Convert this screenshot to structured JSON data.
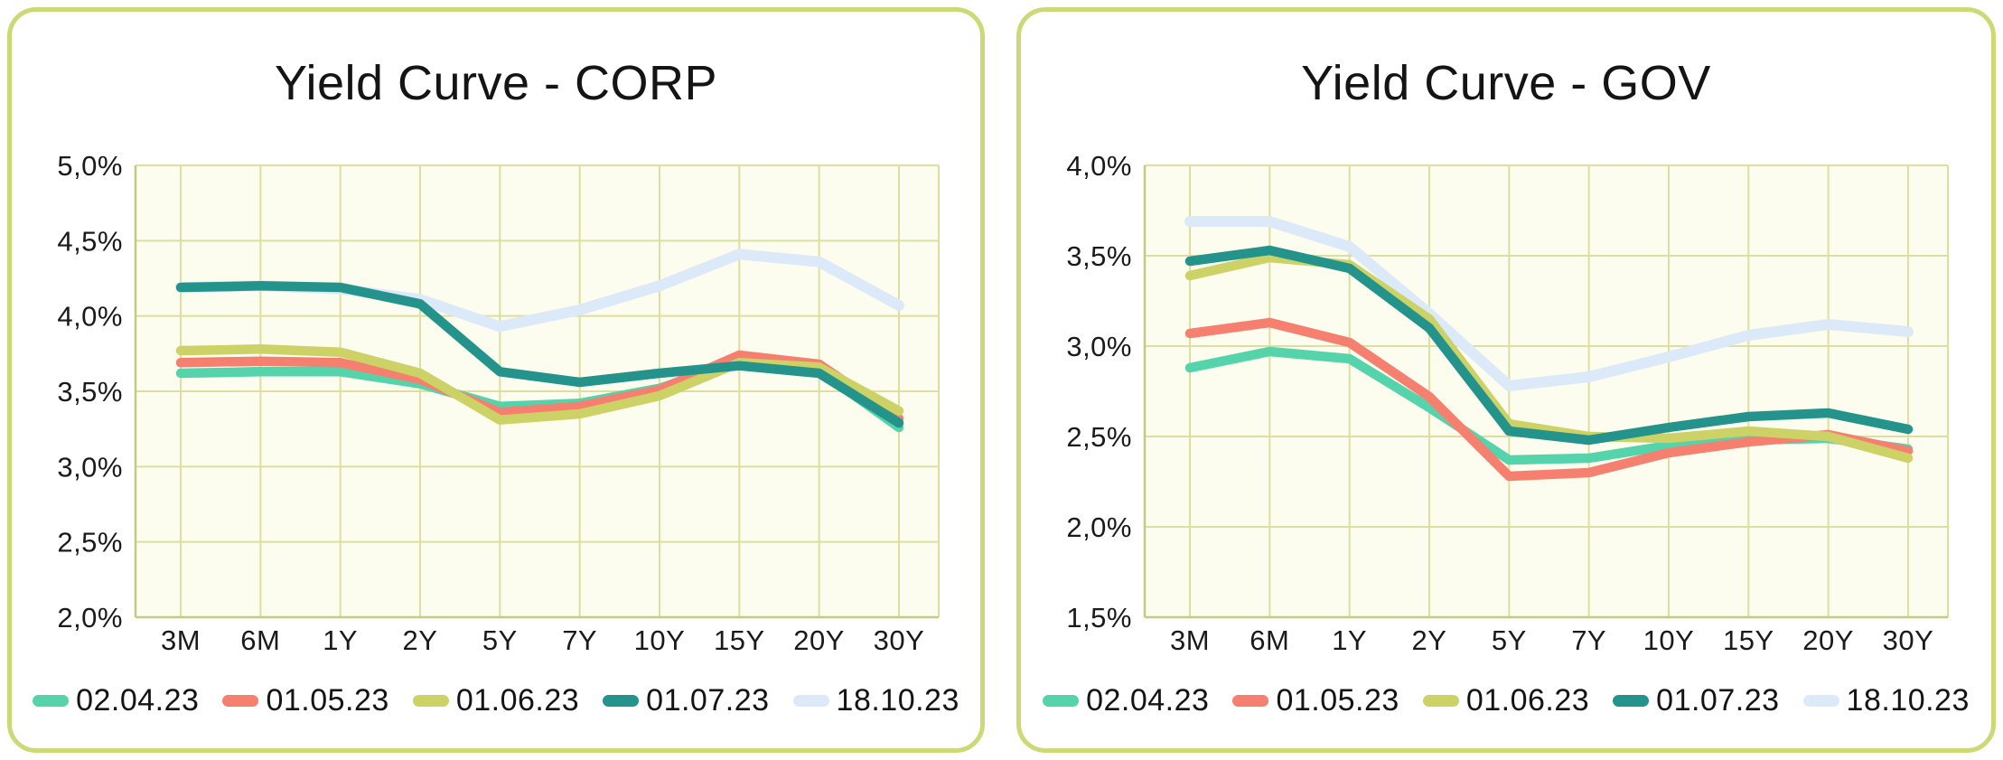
{
  "theme": {
    "page_background": "#ffffff",
    "card_border": "#cdd974",
    "plot_background": "#fcfdee",
    "grid_line": "#dcdf9f",
    "axis_line": "#c6cb83",
    "text": "#141414"
  },
  "chart_data": [
    {
      "type": "line",
      "title": "Yield Curve - CORP",
      "categories": [
        "3M",
        "6M",
        "1Y",
        "2Y",
        "5Y",
        "7Y",
        "10Y",
        "15Y",
        "20Y",
        "30Y"
      ],
      "y_axis": {
        "ticks": [
          "5,0%",
          "4,5%",
          "4,0%",
          "3,5%",
          "3,0%",
          "2,5%",
          "2,0%"
        ],
        "values": [
          5.0,
          4.5,
          4.0,
          3.5,
          3.0,
          2.5,
          2.0
        ],
        "min": 2.0,
        "max": 5.0
      },
      "grid": true,
      "legend_position": "bottom",
      "series": [
        {
          "name": "02.04.23",
          "color": "#55d3ab",
          "values": [
            3.62,
            3.63,
            3.63,
            3.55,
            3.4,
            3.42,
            3.52,
            3.7,
            3.64,
            3.26
          ]
        },
        {
          "name": "01.05.23",
          "color": "#f5806f",
          "values": [
            3.69,
            3.7,
            3.69,
            3.58,
            3.36,
            3.4,
            3.51,
            3.74,
            3.68,
            3.32
          ]
        },
        {
          "name": "01.06.23",
          "color": "#ccd266",
          "values": [
            3.77,
            3.78,
            3.76,
            3.62,
            3.31,
            3.35,
            3.47,
            3.69,
            3.66,
            3.37
          ]
        },
        {
          "name": "01.07.23",
          "color": "#23938b",
          "values": [
            4.19,
            4.2,
            4.19,
            4.08,
            3.63,
            3.56,
            3.62,
            3.67,
            3.62,
            3.29
          ]
        },
        {
          "name": "18.10.23",
          "color": "#dce9f9",
          "values": [
            4.19,
            4.2,
            4.18,
            4.11,
            3.93,
            4.04,
            4.2,
            4.41,
            4.36,
            4.07
          ]
        }
      ]
    },
    {
      "type": "line",
      "title": "Yield Curve - GOV",
      "categories": [
        "3M",
        "6M",
        "1Y",
        "2Y",
        "5Y",
        "7Y",
        "10Y",
        "15Y",
        "20Y",
        "30Y"
      ],
      "y_axis": {
        "ticks": [
          "4,0%",
          "3,5%",
          "3,0%",
          "2,5%",
          "2,0%",
          "1,5%"
        ],
        "values": [
          4.0,
          3.5,
          3.0,
          2.5,
          2.0,
          1.5
        ],
        "min": 1.5,
        "max": 4.0
      },
      "grid": true,
      "legend_position": "bottom",
      "series": [
        {
          "name": "02.04.23",
          "color": "#55d3ab",
          "values": [
            2.88,
            2.97,
            2.93,
            2.66,
            2.37,
            2.38,
            2.45,
            2.48,
            2.49,
            2.43
          ]
        },
        {
          "name": "01.05.23",
          "color": "#f5806f",
          "values": [
            3.07,
            3.13,
            3.02,
            2.72,
            2.28,
            2.3,
            2.41,
            2.47,
            2.51,
            2.42
          ]
        },
        {
          "name": "01.06.23",
          "color": "#ccd266",
          "values": [
            3.39,
            3.49,
            3.45,
            3.15,
            2.57,
            2.5,
            2.49,
            2.53,
            2.5,
            2.38
          ]
        },
        {
          "name": "01.07.23",
          "color": "#23938b",
          "values": [
            3.47,
            3.53,
            3.43,
            3.1,
            2.53,
            2.48,
            2.55,
            2.61,
            2.63,
            2.54
          ]
        },
        {
          "name": "18.10.23",
          "color": "#dce9f9",
          "values": [
            3.69,
            3.69,
            3.55,
            3.18,
            2.78,
            2.83,
            2.94,
            3.06,
            3.12,
            3.08
          ]
        }
      ]
    }
  ]
}
